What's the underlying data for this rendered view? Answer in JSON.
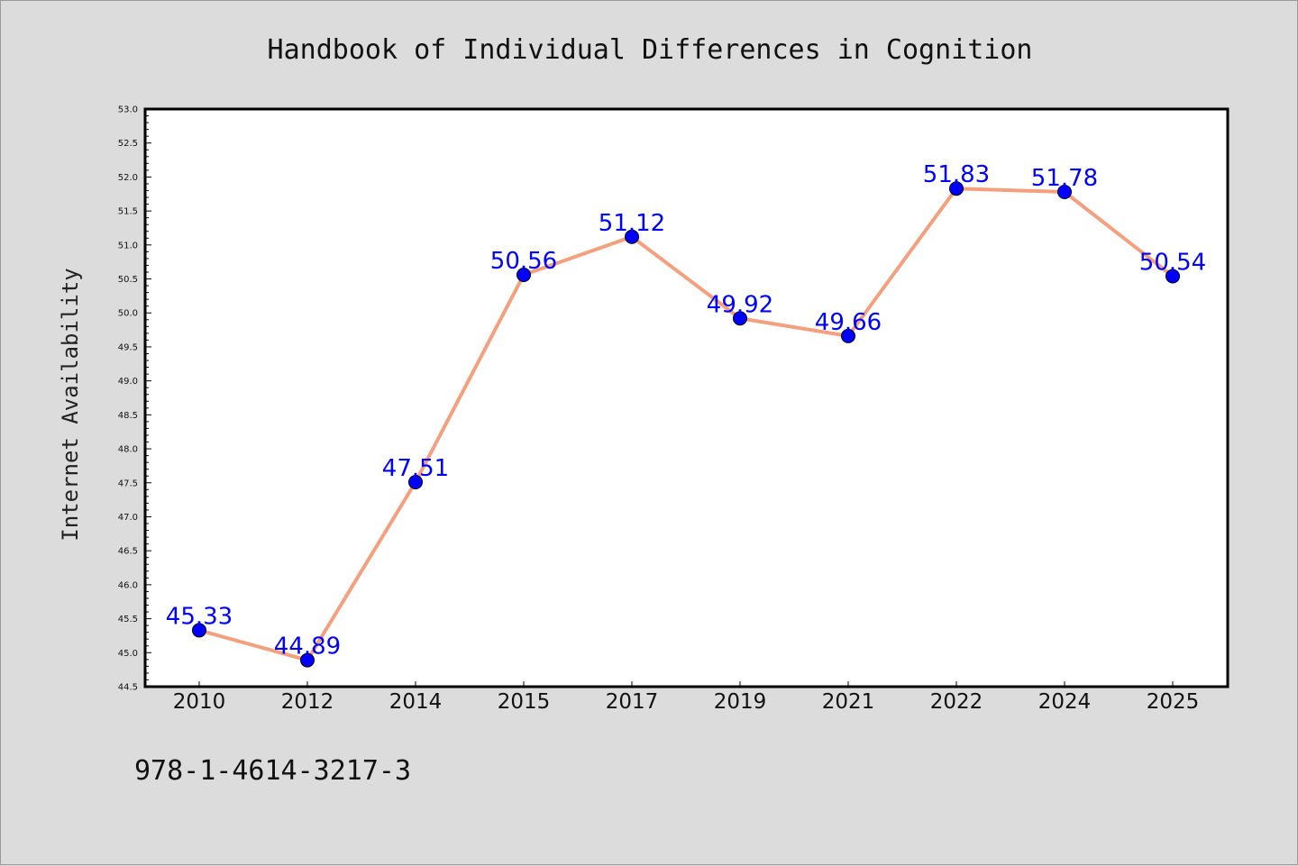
{
  "chart_data": {
    "type": "line",
    "title": "Handbook of Individual Differences in Cognition",
    "xlabel": "",
    "ylabel": "Internet Availability",
    "categories": [
      "2010",
      "2012",
      "2014",
      "2015",
      "2017",
      "2019",
      "2021",
      "2022",
      "2024",
      "2025"
    ],
    "series": [
      {
        "values": [
          45.33,
          44.89,
          47.51,
          50.56,
          51.12,
          49.92,
          49.66,
          51.83,
          51.78,
          50.54
        ],
        "data_labels": [
          "45.33",
          "44.89",
          "47.51",
          "50.56",
          "51.12",
          "49.92",
          "49.66",
          "51.83",
          "51.78",
          "50.54"
        ],
        "line_color": "#f4a07e",
        "marker_color": "#0000ff"
      }
    ],
    "ylim": [
      44.5,
      53.0
    ],
    "yticks": [
      "44.5",
      "45.0",
      "45.5",
      "46.0",
      "46.5",
      "47.0",
      "47.5",
      "48.0",
      "48.5",
      "49.0",
      "49.5",
      "50.0",
      "50.5",
      "51.0",
      "51.5",
      "52.0",
      "52.5",
      "53.0"
    ],
    "grid": false,
    "legend": "none"
  },
  "footer": {
    "isbn": "978-1-4614-3217-3"
  },
  "colors": {
    "background": "#dcdcdc",
    "plot_background": "#ffffff",
    "line": "#f4a07e",
    "marker": "#0000ff",
    "data_label": "#0000ff"
  }
}
